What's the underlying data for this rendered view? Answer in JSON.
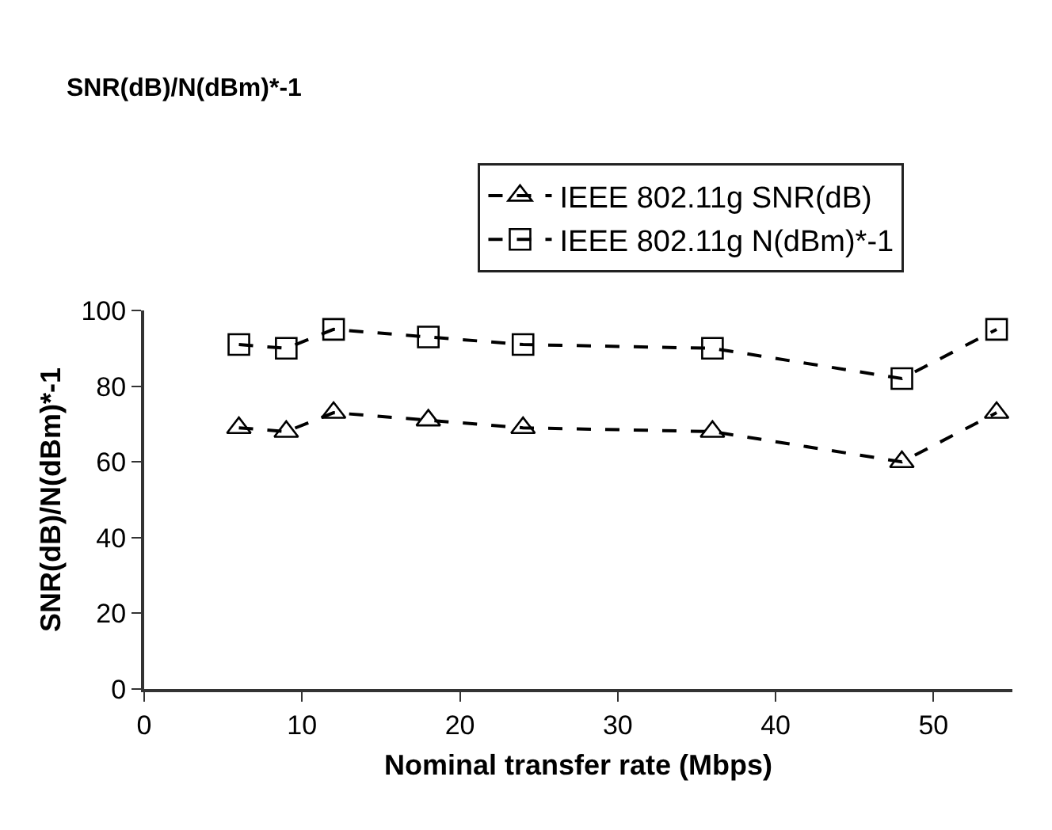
{
  "chart_data": {
    "type": "line",
    "title": "SNR(dB)/N(dBm)*-1",
    "xlabel": "Nominal transfer rate (Mbps)",
    "ylabel": "SNR(dB)/N(dBm)*-1",
    "x": [
      6,
      9,
      12,
      18,
      24,
      36,
      48,
      54
    ],
    "series": [
      {
        "name": "IEEE 802.11g SNR(dB)",
        "color": "#000000",
        "marker": "triangle",
        "values": [
          69,
          68,
          73,
          71,
          69,
          68,
          60,
          73
        ]
      },
      {
        "name": "IEEE 802.11g N(dBm)*-1",
        "color": "#000000",
        "marker": "square",
        "values": [
          91,
          90,
          95,
          93,
          91,
          90,
          82,
          95
        ]
      }
    ],
    "xlim": [
      0,
      55
    ],
    "xticks": [
      0,
      10,
      20,
      30,
      40,
      50
    ],
    "ylim": [
      0,
      100
    ],
    "yticks": [
      0,
      20,
      40,
      60,
      80,
      100
    ],
    "grid": false,
    "legend": "top",
    "line_style": "dashed"
  }
}
